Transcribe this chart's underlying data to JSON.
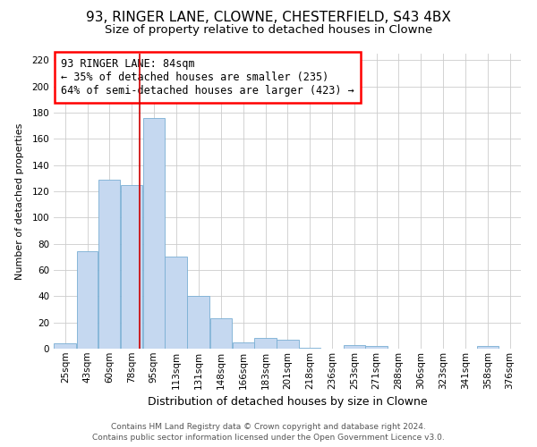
{
  "title1": "93, RINGER LANE, CLOWNE, CHESTERFIELD, S43 4BX",
  "title2": "Size of property relative to detached houses in Clowne",
  "xlabel": "Distribution of detached houses by size in Clowne",
  "ylabel": "Number of detached properties",
  "footer1": "Contains HM Land Registry data © Crown copyright and database right 2024.",
  "footer2": "Contains public sector information licensed under the Open Government Licence v3.0.",
  "annotation_line1": "93 RINGER LANE: 84sqm",
  "annotation_line2": "← 35% of detached houses are smaller (235)",
  "annotation_line3": "64% of semi-detached houses are larger (423) →",
  "bar_color": "#c5d8f0",
  "bar_edge_color": "#7aafd4",
  "ref_line_color": "#cc0000",
  "ref_line_x": 84,
  "categories": [
    "25sqm",
    "43sqm",
    "60sqm",
    "78sqm",
    "95sqm",
    "113sqm",
    "131sqm",
    "148sqm",
    "166sqm",
    "183sqm",
    "201sqm",
    "218sqm",
    "236sqm",
    "253sqm",
    "271sqm",
    "288sqm",
    "306sqm",
    "323sqm",
    "341sqm",
    "358sqm",
    "376sqm"
  ],
  "bin_edges": [
    16.5,
    34.5,
    51.5,
    69.0,
    86.5,
    104.0,
    121.5,
    139.5,
    157.0,
    174.5,
    192.0,
    209.5,
    227.0,
    244.5,
    262.0,
    279.5,
    297.0,
    314.5,
    332.0,
    349.5,
    367.0,
    384.5
  ],
  "values": [
    4,
    74,
    129,
    125,
    176,
    70,
    40,
    23,
    5,
    8,
    7,
    1,
    0,
    3,
    2,
    0,
    0,
    0,
    0,
    2,
    0
  ],
  "ylim": [
    0,
    225
  ],
  "yticks": [
    0,
    20,
    40,
    60,
    80,
    100,
    120,
    140,
    160,
    180,
    200,
    220
  ],
  "background_color": "#ffffff",
  "grid_color": "#cccccc",
  "title1_fontsize": 11,
  "title2_fontsize": 9.5,
  "xlabel_fontsize": 9,
  "ylabel_fontsize": 8,
  "tick_fontsize": 7.5,
  "footer_fontsize": 6.5,
  "annot_fontsize": 8.5
}
